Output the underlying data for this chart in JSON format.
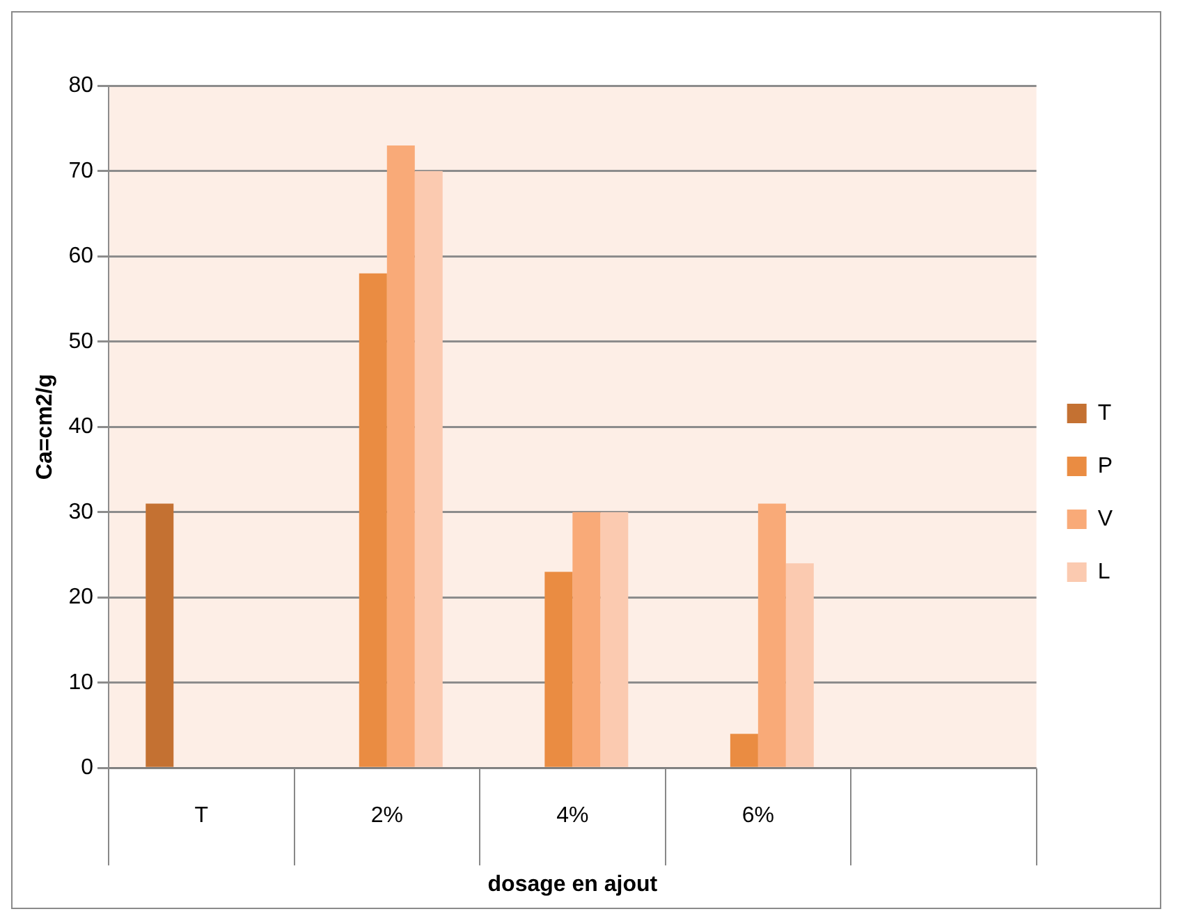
{
  "chart_data": {
    "type": "bar",
    "xlabel": "dosage en ajout",
    "ylabel": "Ca=cm2/g",
    "categories": [
      "T",
      "2%",
      "4%",
      "6%",
      null
    ],
    "series": [
      {
        "name": "T",
        "color": "#c47132",
        "values": [
          31,
          null,
          null,
          null,
          null
        ]
      },
      {
        "name": "P",
        "color": "#ea8c42",
        "values": [
          null,
          58,
          23,
          4,
          null
        ]
      },
      {
        "name": "V",
        "color": "#f9aa78",
        "values": [
          null,
          73,
          30,
          31,
          null
        ]
      },
      {
        "name": "L",
        "color": "#fbcab0",
        "values": [
          null,
          70,
          30,
          24,
          null
        ]
      }
    ],
    "ylim": [
      0,
      80
    ],
    "yticks": [
      0,
      10,
      20,
      30,
      40,
      50,
      60,
      70,
      80
    ],
    "grid": "y",
    "legend": "right"
  }
}
